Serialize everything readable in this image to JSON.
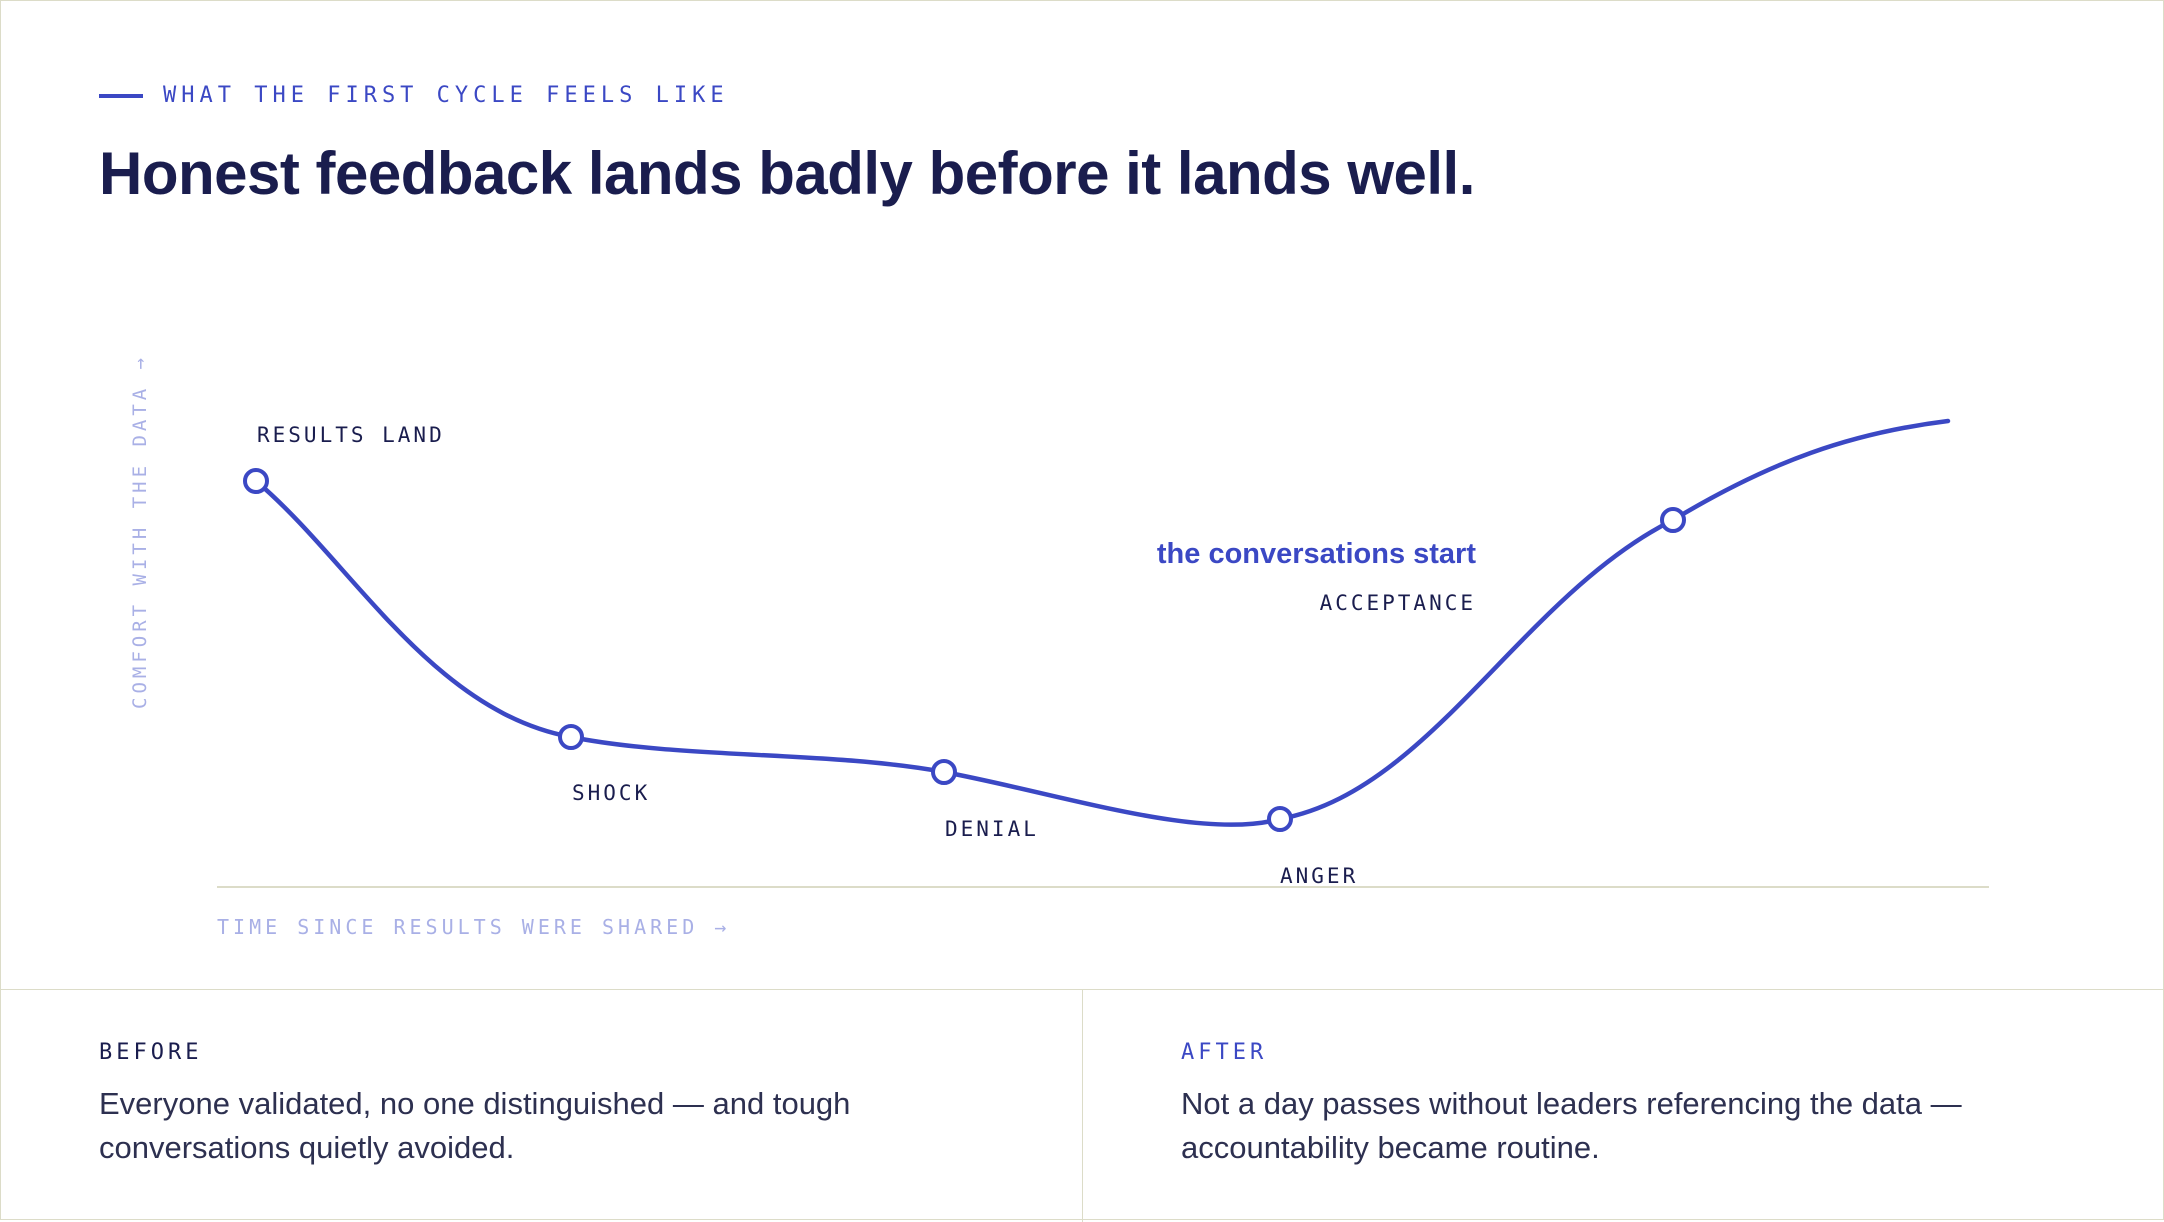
{
  "eyebrow": "WHAT THE FIRST CYCLE FEELS LIKE",
  "headline": "Honest feedback lands badly before it lands well.",
  "colors": {
    "accent": "#3b48c4",
    "ink": "#1a1d4e",
    "muted_axis": "#a9b0e6",
    "rule": "#dcdcc8"
  },
  "chart": {
    "y_axis_label": "COMFORT WITH THE DATA →",
    "x_axis_label": "TIME SINCE RESULTS WERE SHARED →",
    "callout": "the conversations start",
    "stages": [
      {
        "label": "RESULTS LAND"
      },
      {
        "label": "SHOCK"
      },
      {
        "label": "DENIAL"
      },
      {
        "label": "ANGER"
      },
      {
        "label": "ACCEPTANCE"
      }
    ]
  },
  "before": {
    "label": "BEFORE",
    "text": "Everyone validated, no one distinguished — and tough conversations quietly avoided."
  },
  "after": {
    "label": "AFTER",
    "text": "Not a day passes without leaders referencing the data — accountability became routine."
  }
}
